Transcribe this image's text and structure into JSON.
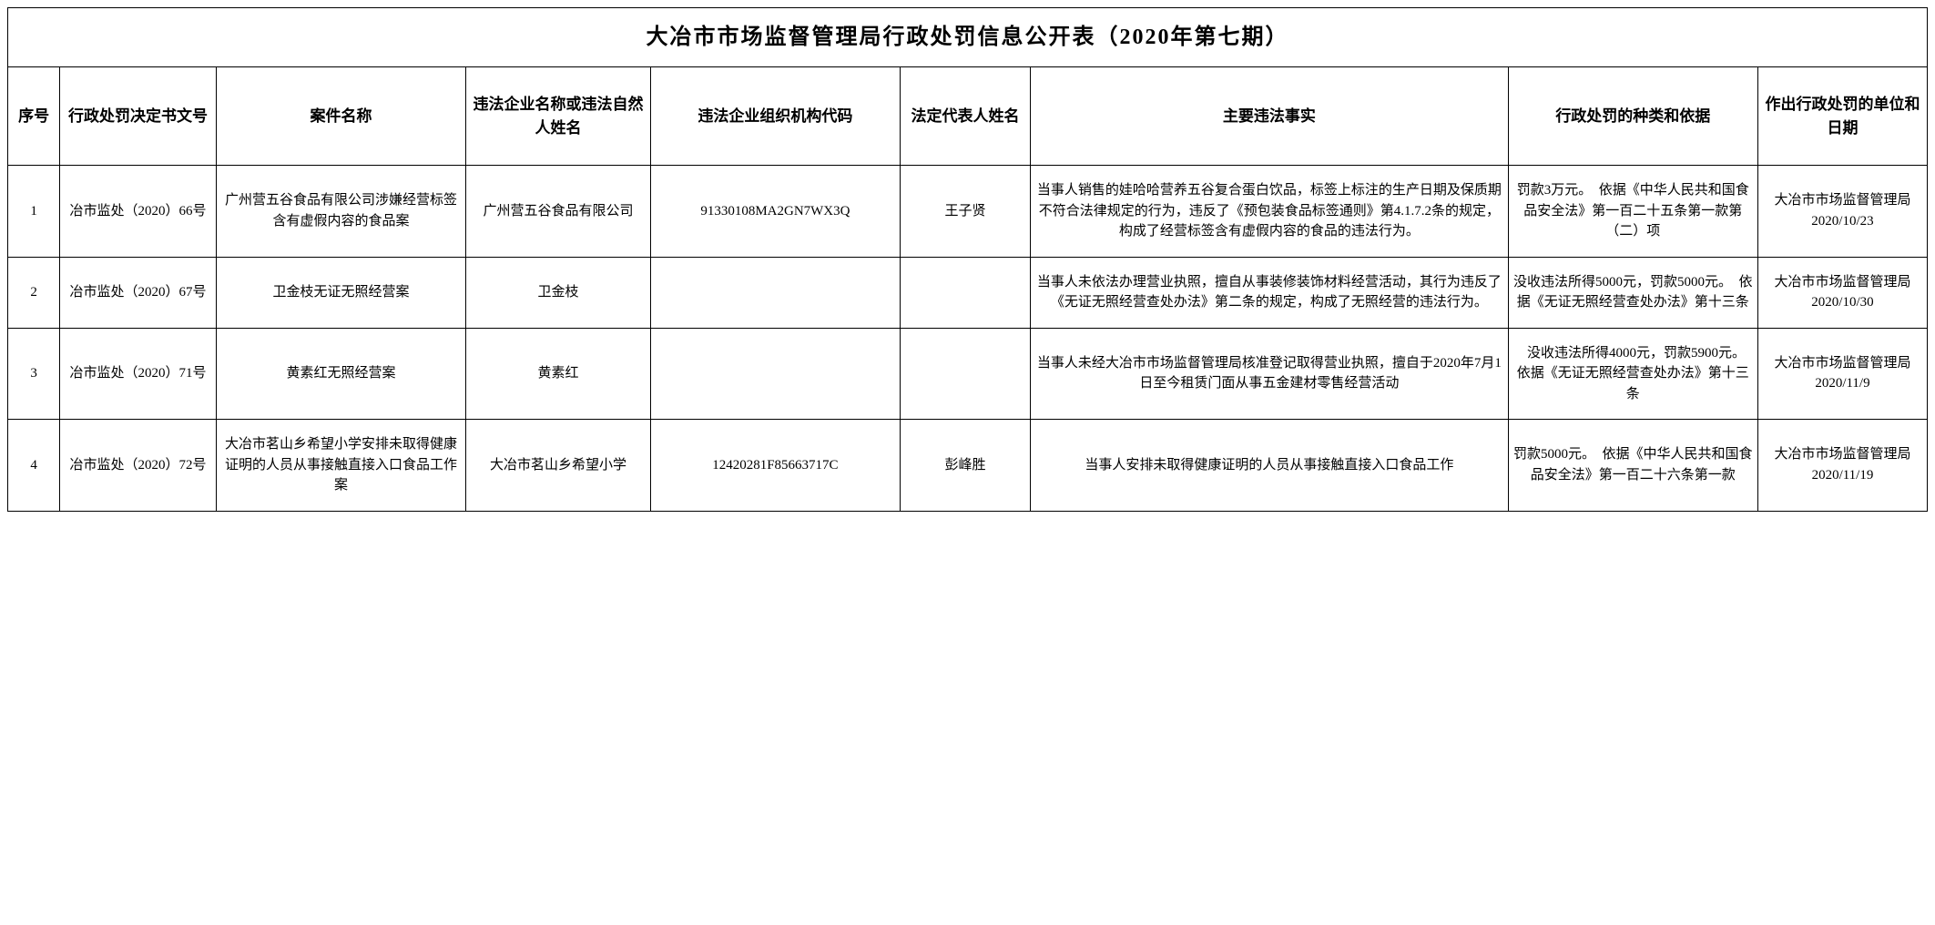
{
  "title": "大冶市市场监督管理局行政处罚信息公开表（2020年第七期）",
  "columns": [
    "序号",
    "行政处罚决定书文号",
    "案件名称",
    "违法企业名称或违法自然人姓名",
    "违法企业组织机构代码",
    "法定代表人姓名",
    "主要违法事实",
    "行政处罚的种类和依据",
    "作出行政处罚的单位和日期"
  ],
  "rows": [
    {
      "seq": "1",
      "doc_no": "冶市监处（2020）66号",
      "case_name": "广州营五谷食品有限公司涉嫌经营标签含有虚假内容的食品案",
      "entity": "广州营五谷食品有限公司",
      "org_code": "91330108MA2GN7WX3Q",
      "rep": "王子贤",
      "fact": "当事人销售的娃哈哈营养五谷复合蛋白饮品，标签上标注的生产日期及保质期不符合法律规定的行为，违反了《预包装食品标签通则》第4.1.7.2条的规定，构成了经营标签含有虚假内容的食品的违法行为。",
      "penalty": "罚款3万元。　依据《中华人民共和国食品安全法》第一百二十五条第一款第（二）项",
      "unit_date": "大冶市市场监督管理局2020/10/23"
    },
    {
      "seq": "2",
      "doc_no": "冶市监处（2020）67号",
      "case_name": "卫金枝无证无照经营案",
      "entity": "卫金枝",
      "org_code": "",
      "rep": "",
      "fact": "当事人未依法办理营业执照，擅自从事装修装饰材料经营活动，其行为违反了《无证无照经营查处办法》第二条的规定，构成了无照经营的违法行为。",
      "penalty": "没收违法所得5000元，罚款5000元。　依据《无证无照经营查处办法》第十三条",
      "unit_date": "大冶市市场监督管理局2020/10/30"
    },
    {
      "seq": "3",
      "doc_no": "冶市监处（2020）71号",
      "case_name": "黄素红无照经营案",
      "entity": "黄素红",
      "org_code": "",
      "rep": "",
      "fact": "当事人未经大冶市市场监督管理局核准登记取得营业执照，擅自于2020年7月1日至今租赁门面从事五金建材零售经营活动",
      "penalty": "没收违法所得4000元，罚款5900元。　　依据《无证无照经营查处办法》第十三条",
      "unit_date": "大冶市市场监督管理局2020/11/9"
    },
    {
      "seq": "4",
      "doc_no": "冶市监处（2020）72号",
      "case_name": "大冶市茗山乡希望小学安排未取得健康证明的人员从事接触直接入口食品工作案",
      "entity": "大冶市茗山乡希望小学",
      "org_code": "12420281F85663717C",
      "rep": "彭峰胜",
      "fact": "当事人安排未取得健康证明的人员从事接触直接入口食品工作",
      "penalty": "罚款5000元。　依据《中华人民共和国食品安全法》第一百二十六条第一款",
      "unit_date": "大冶市市场监督管理局2020/11/19"
    }
  ]
}
